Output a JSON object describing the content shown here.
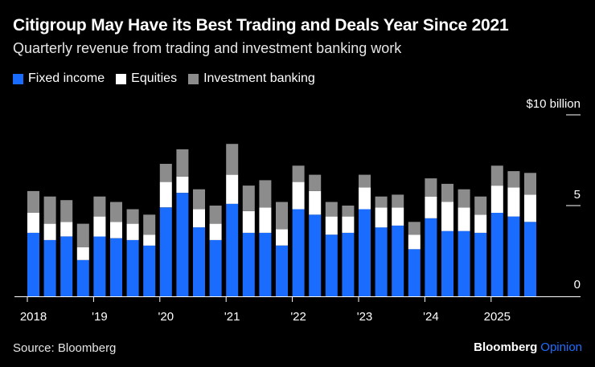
{
  "header": {
    "title": "Citigroup May Have its Best Trading and Deals Year Since 2021",
    "subtitle": "Quarterly revenue from trading and investment banking work"
  },
  "legend": [
    {
      "label": "Fixed income",
      "color": "#1a6cff"
    },
    {
      "label": "Equities",
      "color": "#ffffff"
    },
    {
      "label": "Investment banking",
      "color": "#8c8c8c"
    }
  ],
  "footer": {
    "source": "Source: Bloomberg",
    "brand_primary": "Bloomberg",
    "brand_secondary": "Opinion"
  },
  "chart_data": {
    "type": "bar",
    "stacked": true,
    "title": "Citigroup May Have its Best Trading and Deals Year Since 2021",
    "subtitle": "Quarterly revenue from trading and investment banking work",
    "unit_label": "$10 billion",
    "ylim": [
      0,
      10
    ],
    "yticks": [
      0,
      5,
      10
    ],
    "ytick_labels": [
      "0",
      "5",
      "$10 billion"
    ],
    "categories": [
      "2018 Q1",
      "2018 Q2",
      "2018 Q3",
      "2018 Q4",
      "2019 Q1",
      "2019 Q2",
      "2019 Q3",
      "2019 Q4",
      "2020 Q1",
      "2020 Q2",
      "2020 Q3",
      "2020 Q4",
      "2021 Q1",
      "2021 Q2",
      "2021 Q3",
      "2021 Q4",
      "2022 Q1",
      "2022 Q2",
      "2022 Q3",
      "2022 Q4",
      "2023 Q1",
      "2023 Q2",
      "2023 Q3",
      "2023 Q4",
      "2024 Q1",
      "2024 Q2",
      "2024 Q3",
      "2024 Q4",
      "2025 Q1",
      "2025 Q2",
      "2025 Q3"
    ],
    "year_labels": [
      {
        "label": "2018",
        "index": 0
      },
      {
        "label": "'19",
        "index": 4
      },
      {
        "label": "'20",
        "index": 8
      },
      {
        "label": "'21",
        "index": 12
      },
      {
        "label": "'22",
        "index": 16
      },
      {
        "label": "'23",
        "index": 20
      },
      {
        "label": "'24",
        "index": 24
      },
      {
        "label": "2025",
        "index": 28
      }
    ],
    "series": [
      {
        "name": "Fixed income",
        "color": "#1a6cff",
        "values": [
          3.5,
          3.1,
          3.3,
          2.0,
          3.3,
          3.2,
          3.1,
          2.8,
          4.9,
          5.7,
          3.8,
          3.1,
          5.1,
          3.5,
          3.5,
          2.8,
          4.8,
          4.5,
          3.4,
          3.5,
          4.8,
          3.8,
          3.9,
          2.6,
          4.3,
          3.6,
          3.6,
          3.5,
          4.6,
          4.4,
          4.1
        ]
      },
      {
        "name": "Equities",
        "color": "#ffffff",
        "values": [
          1.1,
          0.9,
          0.8,
          0.7,
          1.1,
          0.9,
          0.9,
          0.6,
          1.4,
          0.9,
          1.0,
          0.9,
          1.6,
          1.2,
          1.4,
          0.9,
          1.5,
          1.3,
          1.0,
          0.9,
          1.2,
          1.1,
          1.0,
          0.8,
          1.2,
          1.6,
          1.3,
          1.0,
          1.5,
          1.6,
          1.5
        ]
      },
      {
        "name": "Investment banking",
        "color": "#8c8c8c",
        "values": [
          1.2,
          1.5,
          1.2,
          1.3,
          1.1,
          1.1,
          0.8,
          1.1,
          1.0,
          1.5,
          1.1,
          1.0,
          1.7,
          1.4,
          1.5,
          1.5,
          0.9,
          0.9,
          0.8,
          0.6,
          0.7,
          0.6,
          0.7,
          0.7,
          1.0,
          1.0,
          1.0,
          1.0,
          1.1,
          0.9,
          1.2
        ]
      }
    ]
  }
}
